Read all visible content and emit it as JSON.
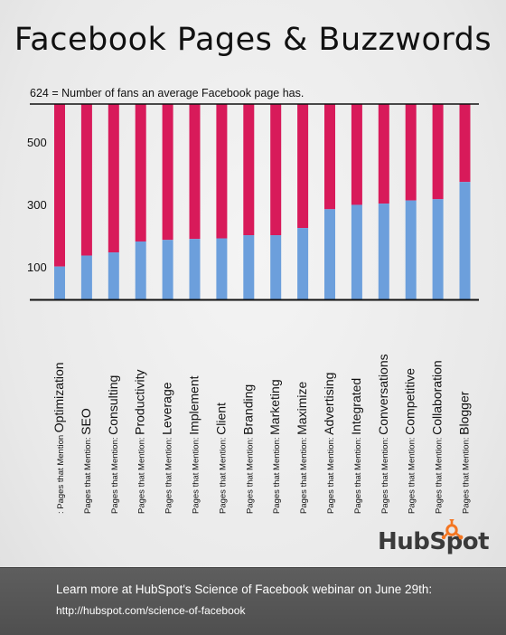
{
  "header": {
    "title": "Facebook Pages & Buzzwords",
    "note": "624 = Number of fans an average Facebook page has."
  },
  "colors": {
    "fans_above": "#d81a5a",
    "fans_below": "#6c9fdc",
    "baseline": "#111111",
    "footer_bg": "#555555"
  },
  "chart_data": {
    "type": "bar",
    "title": "Facebook Pages & Buzzwords",
    "ylim": [
      0,
      624
    ],
    "reference_value": 624,
    "yticks": [
      "100",
      "300",
      "500"
    ],
    "ytick_values": [
      100,
      300,
      500
    ],
    "categories": [
      "Optimization",
      "SEO",
      "Consulting",
      "Productivity",
      "Leverage",
      "Implement",
      "Client",
      "Branding",
      "Marketing",
      "Maximize",
      "Advertising",
      "Integrated",
      "Conversations",
      "Competitive",
      "Collaboration",
      "Blogger"
    ],
    "category_prefixes": [
      ": Pages that Mention",
      "Pages that Mention:",
      "Pages that Mention:",
      "Pages that Mention:",
      "Pages that Mention:",
      "Pages that Mention:",
      "Pages that Mention:",
      "Pages that Mention:",
      "Pages that Mention:",
      "Pages that Mention:",
      "Pages that Mention:",
      "Pages that Mention:",
      "Pages that Mention:",
      "Pages that Mention:",
      "Pages that Mention:",
      "Pages that Mention:"
    ],
    "values": [
      105,
      140,
      150,
      185,
      190,
      193,
      195,
      205,
      205,
      228,
      288,
      302,
      306,
      316,
      320,
      375
    ],
    "grid": false,
    "legend": "none"
  },
  "logo": {
    "text": "HubSpot"
  },
  "footer": {
    "line1": "Learn more at HubSpot's Science of Facebook webinar on June 29th:",
    "line2": "http://hubspot.com/science-of-facebook"
  }
}
